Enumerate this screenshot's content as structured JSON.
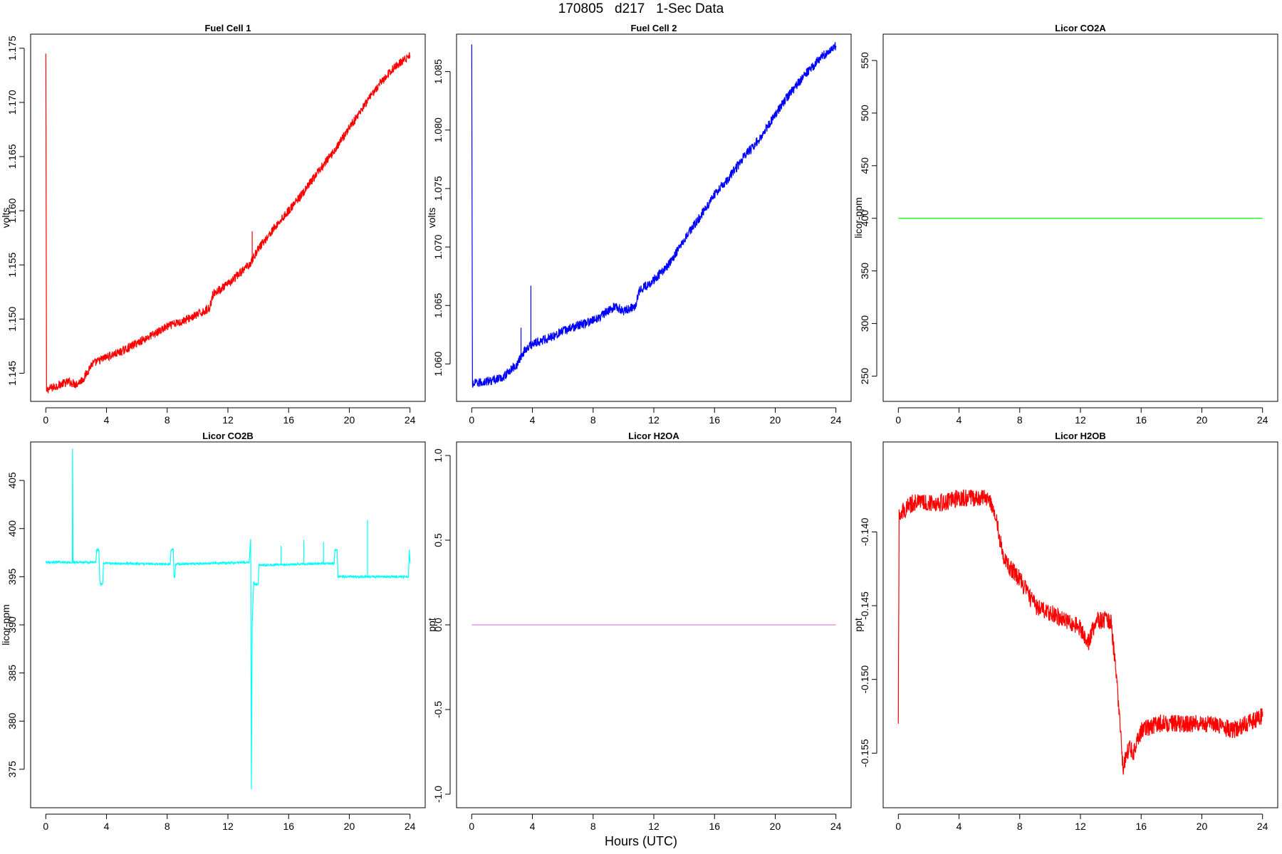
{
  "figure": {
    "title": "170805   d217   1-Sec Data",
    "xlabel": "Hours (UTC)"
  },
  "chart_data": [
    {
      "type": "line",
      "title": "Fuel Cell 1",
      "ylabel": "volts",
      "color": "#ff0000",
      "xlim": [
        -1,
        25
      ],
      "ylim": [
        1.1424,
        1.1763
      ],
      "xticks": [
        0,
        4,
        8,
        12,
        16,
        20,
        24
      ],
      "yticks": [
        1.145,
        1.15,
        1.155,
        1.16,
        1.165,
        1.17,
        1.175
      ],
      "ytick_labels": [
        "1.145",
        "1.150",
        "1.155",
        "1.160",
        "1.165",
        "1.170",
        "1.175"
      ],
      "noise": 0.0004,
      "x": [
        0,
        0.05,
        0.1,
        0.5,
        1,
        1.5,
        2,
        2.5,
        3,
        4,
        5,
        6,
        7,
        8,
        9,
        10,
        10.8,
        11,
        12,
        13,
        13.5,
        14,
        15,
        16,
        17,
        18,
        19,
        20,
        21,
        22,
        23,
        24
      ],
      "y": [
        1.1744,
        1.1433,
        1.1435,
        1.1437,
        1.144,
        1.1442,
        1.144,
        1.1445,
        1.1458,
        1.1465,
        1.147,
        1.1478,
        1.1485,
        1.1493,
        1.1498,
        1.1504,
        1.151,
        1.1523,
        1.1532,
        1.1545,
        1.1552,
        1.1565,
        1.1583,
        1.16,
        1.1617,
        1.1637,
        1.1655,
        1.1677,
        1.1697,
        1.1717,
        1.1733,
        1.1743
      ],
      "spikes": [
        {
          "x": 13.6,
          "y": 1.1581
        }
      ]
    },
    {
      "type": "line",
      "title": "Fuel Cell 2",
      "ylabel": "volts",
      "color": "#0000ff",
      "xlim": [
        -1,
        25
      ],
      "ylim": [
        1.0568,
        1.0882
      ],
      "xticks": [
        0,
        4,
        8,
        12,
        16,
        20,
        24
      ],
      "yticks": [
        1.06,
        1.065,
        1.07,
        1.075,
        1.08,
        1.085
      ],
      "ytick_labels": [
        "1.060",
        "1.065",
        "1.070",
        "1.075",
        "1.080",
        "1.085"
      ],
      "noise": 0.0004,
      "x": [
        0,
        0.05,
        0.1,
        1,
        2,
        3,
        3.5,
        4,
        5,
        6,
        7,
        8,
        9,
        9.5,
        10,
        10.8,
        11,
        12,
        13,
        14,
        15,
        16,
        17,
        18,
        19,
        20,
        21,
        22,
        23,
        24
      ],
      "y": [
        1.0872,
        1.0582,
        1.0583,
        1.0585,
        1.0588,
        1.06,
        1.0612,
        1.0617,
        1.0622,
        1.0628,
        1.0633,
        1.0637,
        1.0645,
        1.065,
        1.0645,
        1.065,
        1.0662,
        1.0672,
        1.0685,
        1.0707,
        1.0725,
        1.0745,
        1.076,
        1.0778,
        1.0793,
        1.0813,
        1.0832,
        1.0848,
        1.0862,
        1.0872
      ],
      "spikes": [
        {
          "x": 3.9,
          "y": 1.0667
        },
        {
          "x": 3.25,
          "y": 1.0631
        }
      ]
    },
    {
      "type": "line",
      "title": "Licor CO2A",
      "ylabel": "licor-ppm",
      "color": "#00ff00",
      "xlim": [
        -1,
        25
      ],
      "ylim": [
        226,
        575
      ],
      "xticks": [
        0,
        4,
        8,
        12,
        16,
        20,
        24
      ],
      "yticks": [
        250,
        300,
        350,
        400,
        450,
        500,
        550
      ],
      "ytick_labels": [
        "250",
        "300",
        "350",
        "400",
        "450",
        "500",
        "550"
      ],
      "noise": 0,
      "x": [
        0,
        24
      ],
      "y": [
        400,
        400
      ]
    },
    {
      "type": "line",
      "title": "Licor CO2B",
      "ylabel": "licor-ppm",
      "color": "#00ffff",
      "xlim": [
        -1,
        25
      ],
      "ylim": [
        371,
        409
      ],
      "xticks": [
        0,
        4,
        8,
        12,
        16,
        20,
        24
      ],
      "yticks": [
        375,
        380,
        385,
        390,
        395,
        400,
        405
      ],
      "ytick_labels": [
        "375",
        "380",
        "385",
        "390",
        "395",
        "400",
        "405"
      ],
      "noise": 0.1,
      "x": [
        0,
        1.75,
        1.76,
        1.8,
        3.3,
        3.35,
        3.5,
        3.55,
        3.6,
        3.65,
        3.75,
        3.8,
        8.2,
        8.25,
        8.4,
        8.45,
        8.5,
        8.55,
        13.4,
        13.5,
        13.55,
        13.6,
        13.7,
        13.75,
        14.0,
        14.05,
        14.1,
        19.0,
        19.05,
        19.2,
        19.25,
        23.9,
        23.95,
        24
      ],
      "y": [
        396.5,
        396.5,
        408.3,
        396.5,
        396.5,
        397.8,
        397.8,
        394.9,
        394.2,
        394.2,
        394.2,
        396.4,
        396.3,
        397.8,
        397.8,
        395.0,
        394.9,
        396.3,
        396.5,
        398.9,
        372.9,
        390.2,
        394.5,
        394.2,
        394.2,
        396.2,
        396.2,
        396.4,
        397.8,
        397.8,
        395.0,
        395.0,
        397.8,
        396.5
      ],
      "spikes": [
        {
          "x": 21.2,
          "y": 400.9
        },
        {
          "x": 17.0,
          "y": 398.8
        },
        {
          "x": 18.3,
          "y": 398.6
        },
        {
          "x": 15.5,
          "y": 398.2
        }
      ]
    },
    {
      "type": "line",
      "title": "Licor H2OA",
      "ylabel": "ppt",
      "color": "#dd88dd",
      "xlim": [
        -1,
        25
      ],
      "ylim": [
        -1.08,
        1.08
      ],
      "xticks": [
        0,
        4,
        8,
        12,
        16,
        20,
        24
      ],
      "yticks": [
        -1.0,
        -0.5,
        0.0,
        0.5,
        1.0
      ],
      "ytick_labels": [
        "-1.0",
        "-0.5",
        "0.0",
        "0.5",
        "1.0"
      ],
      "noise": 0,
      "x": [
        0,
        24
      ],
      "y": [
        0,
        0
      ]
    },
    {
      "type": "line",
      "title": "Licor H2OB",
      "ylabel": "ppt",
      "color": "#ff0000",
      "xlim": [
        -1,
        25
      ],
      "ylim": [
        -0.1587,
        -0.1339
      ],
      "xticks": [
        0,
        4,
        8,
        12,
        16,
        20,
        24
      ],
      "yticks": [
        -0.155,
        -0.15,
        -0.145,
        -0.14
      ],
      "ytick_labels": [
        "-0.155",
        "-0.150",
        "-0.145",
        "-0.140"
      ],
      "noise": 0.0006,
      "x": [
        0,
        0.05,
        0.1,
        1,
        2,
        3,
        4,
        5,
        6,
        6.3,
        7,
        8,
        9,
        10,
        11,
        12,
        12.5,
        13,
        14,
        14.4,
        14.8,
        15.2,
        15.5,
        16,
        17,
        18,
        19,
        20,
        21,
        22,
        23,
        24
      ],
      "y": [
        -0.153,
        -0.139,
        -0.1387,
        -0.138,
        -0.138,
        -0.138,
        -0.1377,
        -0.1377,
        -0.1377,
        -0.1385,
        -0.142,
        -0.1432,
        -0.145,
        -0.1455,
        -0.146,
        -0.1465,
        -0.1475,
        -0.146,
        -0.146,
        -0.15,
        -0.156,
        -0.1545,
        -0.155,
        -0.1535,
        -0.153,
        -0.153,
        -0.153,
        -0.153,
        -0.153,
        -0.1535,
        -0.153,
        -0.1525
      ]
    }
  ]
}
